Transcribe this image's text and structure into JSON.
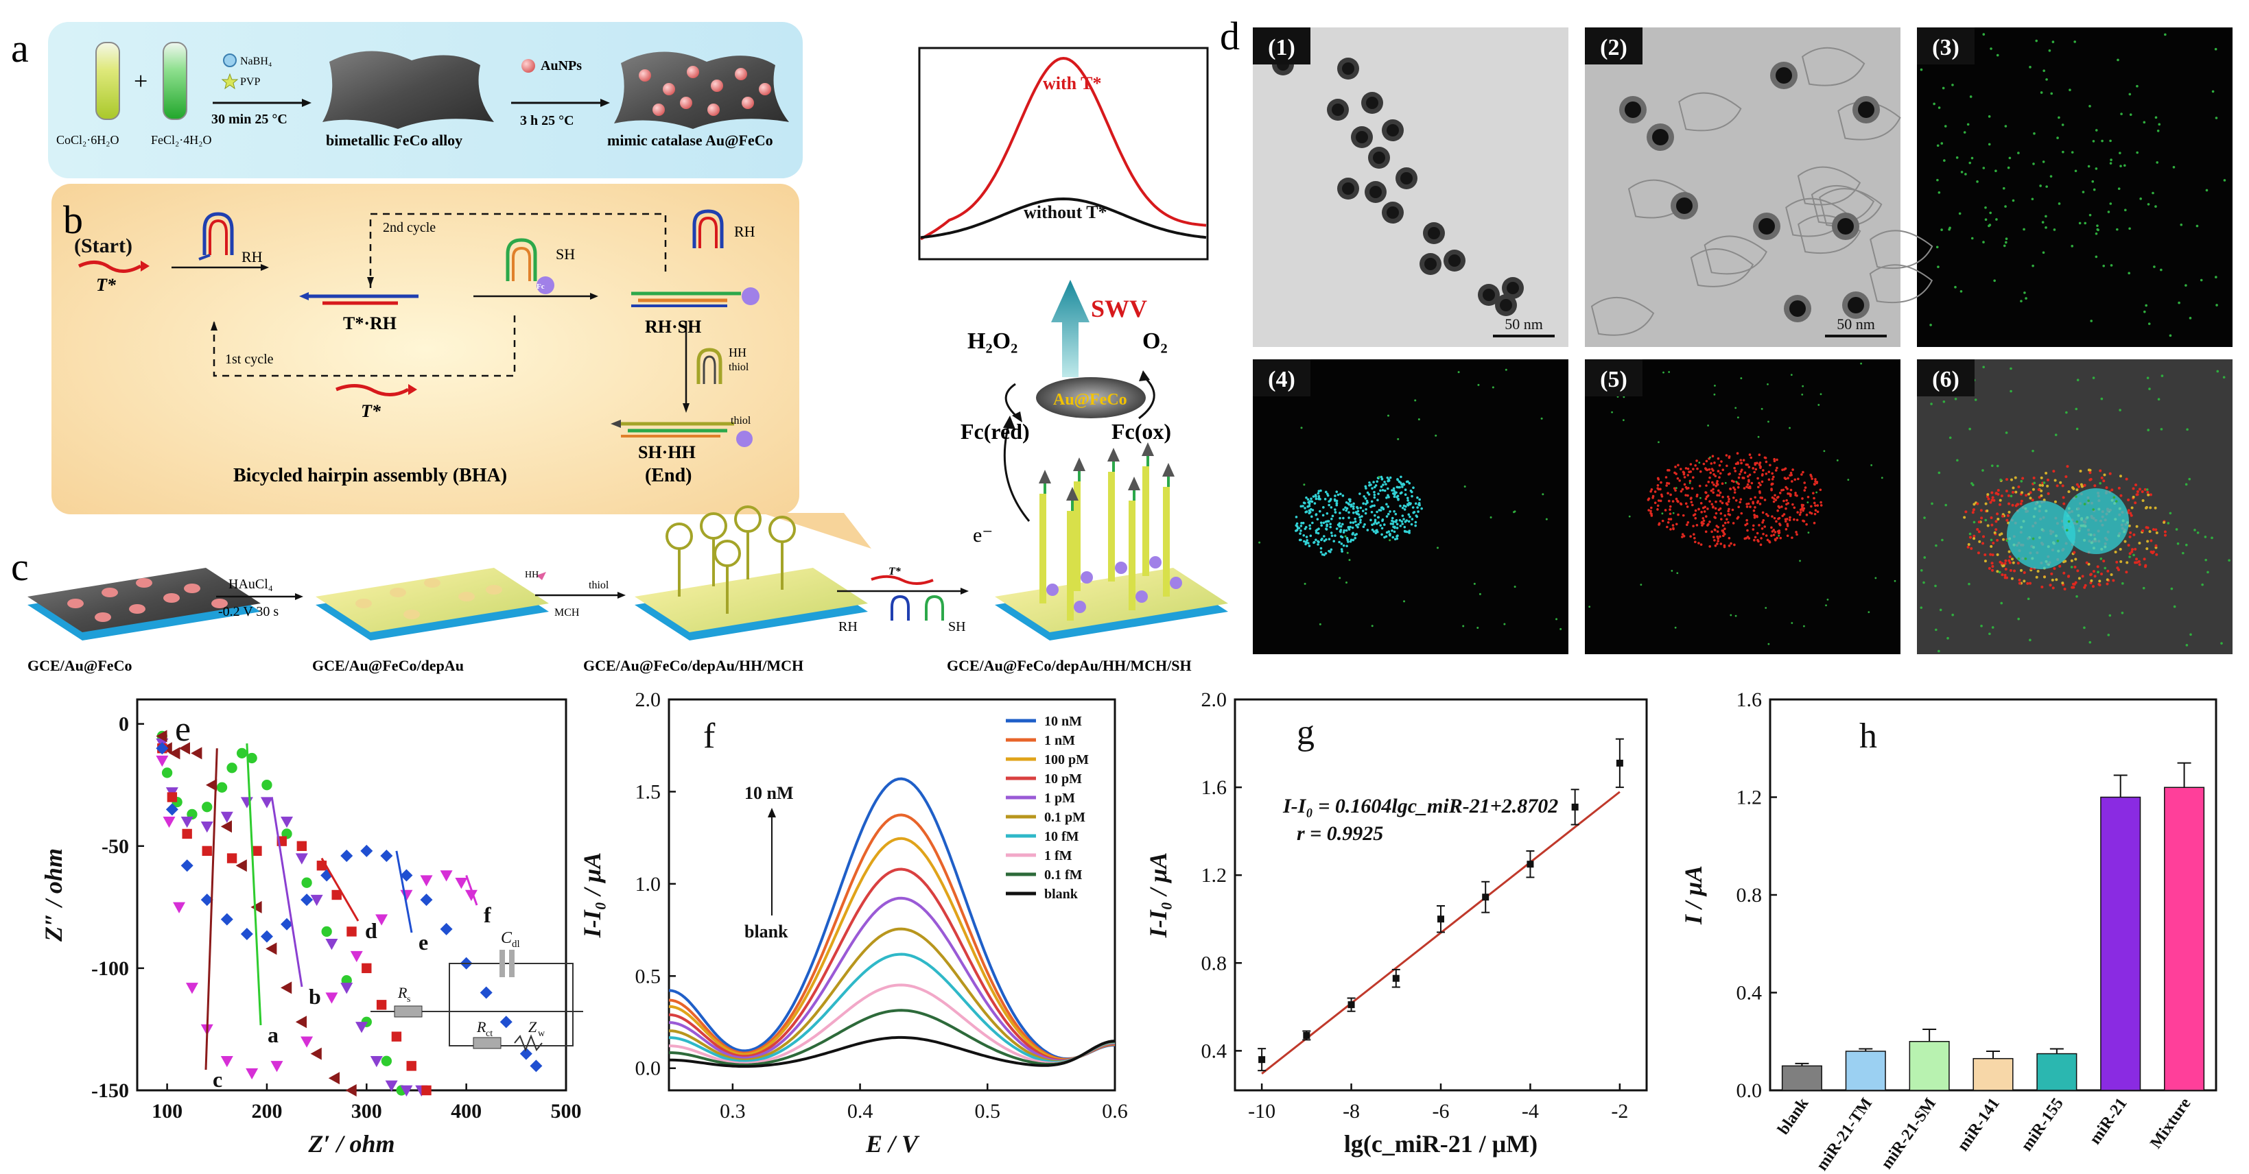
{
  "colors": {
    "red": "#d7191c",
    "tem_bg": "#cfcfcf",
    "eds_bg": "#050505",
    "cyan": "#32d2d6",
    "green_dot": "#2fae3e",
    "red_dot": "#e0281f"
  },
  "panel_letters": [
    "a",
    "b",
    "c",
    "d",
    "e",
    "f",
    "g",
    "h"
  ],
  "a": {
    "reagent1": "CoCl₂·6H₂O",
    "reagent2": "FeCl₂·4H₂O",
    "plus": "+",
    "nabh4": "NaBH₄",
    "pvp": "PVP",
    "cond1": "30 min 25 °C",
    "alloy": "bimetallic  FeCo alloy",
    "aunps": "AuNPs",
    "cond2": "3 h  25 °C",
    "catalase": "mimic catalase Au@FeCo"
  },
  "b": {
    "start": "(Start)",
    "tstar": "T*",
    "rh": "RH",
    "sh": "SH",
    "fc": "Fc",
    "t_rh": "T*·RH",
    "rh_sh": "RH·SH",
    "cycle2": "2nd cycle",
    "cycle1": "1st cycle",
    "hh": "HH",
    "thiol": "thiol",
    "sh_hh": "SH·HH",
    "end": "(End)",
    "title": "Bicycled hairpin assembly (BHA)"
  },
  "c": {
    "haucl4": "HAuCl₄",
    "cond": "-0.2 V 30 s",
    "hh": "HH",
    "thiol": "thiol",
    "mch": "MCH",
    "tstar": "T*",
    "rh": "RH",
    "sh": "SH",
    "e_label": "e⁻",
    "label1": "GCE/Au@FeCo",
    "label2": "GCE/Au@FeCo/depAu",
    "label3": "GCE/Au@FeCo/depAu/HH/MCH",
    "label4": "GCE/Au@FeCo/depAu/HH/MCH/SH",
    "fc": "Fc"
  },
  "swv": {
    "with": "with T*",
    "without": "without T*",
    "swv_label": "SWV",
    "h2o2": "H₂O₂",
    "o2": "O₂",
    "catalyst": "Au@FeCo",
    "fc_red": "Fc(red)",
    "fc_ox": "Fc(ox)"
  },
  "d": {
    "tiles": [
      "(1)",
      "(2)",
      "(3)",
      "(4)",
      "(5)",
      "(6)"
    ],
    "scale": "50 nm"
  },
  "chart_data": [
    {
      "panel": "e",
      "type": "scatter",
      "xlabel": "Z′ / ohm",
      "ylabel": "Z″ / ohm",
      "xlim": [
        70,
        500
      ],
      "ylim": [
        10,
        -150
      ],
      "xticks": [
        100,
        200,
        300,
        400,
        500
      ],
      "yticks": [
        0,
        -50,
        -100,
        -150
      ],
      "series": [
        {
          "name": "a",
          "color": "#2ecc2e",
          "marker": "circle",
          "x": [
            95,
            100,
            110,
            125,
            140,
            155,
            165,
            175,
            185,
            200,
            220,
            240,
            260,
            280,
            300,
            320,
            335
          ],
          "y": [
            -5,
            -20,
            -32,
            -37,
            -34,
            -26,
            -18,
            -12,
            -14,
            -25,
            -45,
            -65,
            -85,
            -105,
            -122,
            -138,
            -150
          ]
        },
        {
          "name": "b",
          "color": "#8a3fd1",
          "marker": "triangle-down",
          "x": [
            95,
            105,
            120,
            140,
            160,
            180,
            200,
            220,
            235,
            250,
            265,
            280,
            295,
            310,
            325,
            340,
            355
          ],
          "y": [
            -8,
            -28,
            -40,
            -42,
            -38,
            -32,
            -32,
            -40,
            -55,
            -72,
            -90,
            -108,
            -124,
            -138,
            -148,
            -150,
            -150
          ]
        },
        {
          "name": "c",
          "color": "#8b1a1a",
          "marker": "triangle-left",
          "x": [
            95,
            100,
            108,
            118,
            130,
            145,
            160,
            175,
            190,
            205,
            220,
            235,
            250,
            268,
            285
          ],
          "y": [
            -5,
            -10,
            -12,
            -10,
            -12,
            -25,
            -42,
            -58,
            -75,
            -92,
            -108,
            -122,
            -135,
            -145,
            -150
          ]
        },
        {
          "name": "d",
          "color": "#d32020",
          "marker": "square",
          "x": [
            95,
            105,
            120,
            140,
            165,
            190,
            215,
            235,
            255,
            270,
            285,
            300,
            315,
            330,
            345,
            360
          ],
          "y": [
            -10,
            -30,
            -45,
            -52,
            -55,
            -52,
            -48,
            -50,
            -58,
            -70,
            -85,
            -100,
            -115,
            -128,
            -140,
            -150
          ]
        },
        {
          "name": "e",
          "color": "#1f4fd1",
          "marker": "diamond",
          "x": [
            95,
            105,
            120,
            140,
            160,
            180,
            200,
            220,
            240,
            260,
            280,
            300,
            320,
            340,
            360,
            380,
            400,
            420,
            440,
            460,
            470
          ],
          "y": [
            -10,
            -35,
            -58,
            -72,
            -80,
            -86,
            -87,
            -82,
            -72,
            -62,
            -54,
            -52,
            -54,
            -62,
            -72,
            -84,
            -98,
            -110,
            -122,
            -135,
            -140
          ]
        },
        {
          "name": "f",
          "color": "#d62fd6",
          "marker": "triangle-down",
          "x": [
            95,
            102,
            112,
            125,
            140,
            160,
            185,
            210,
            240,
            265,
            290,
            315,
            340,
            360,
            380,
            395,
            405
          ],
          "y": [
            -15,
            -40,
            -75,
            -108,
            -125,
            -138,
            -143,
            -140,
            -130,
            -112,
            -95,
            -80,
            -70,
            -64,
            -62,
            -65,
            -70
          ]
        }
      ],
      "circuit": {
        "rs": "R",
        "rs_sub": "s",
        "cdl": "C",
        "cdl_sub": "dl",
        "rct": "R",
        "rct_sub": "ct",
        "zw": "Z",
        "zw_sub": "w"
      }
    },
    {
      "panel": "f",
      "type": "line",
      "xlabel": "E / V",
      "ylabel": "I-I₀ / μA",
      "xlim": [
        0.25,
        0.6
      ],
      "ylim": [
        -0.12,
        2.0
      ],
      "xticks": [
        0.3,
        0.4,
        0.5,
        0.6
      ],
      "yticks": [
        0.0,
        0.5,
        1.0,
        1.5,
        2.0
      ],
      "annot_top": "10 nM",
      "annot_bottom": "blank",
      "series": [
        {
          "name": "10 nM",
          "color": "#1f5fc8",
          "peak": 1.6
        },
        {
          "name": "1 nM",
          "color": "#e8642a",
          "peak": 1.4
        },
        {
          "name": "100 pM",
          "color": "#e0a31a",
          "peak": 1.27
        },
        {
          "name": "10 pM",
          "color": "#d94040",
          "peak": 1.1
        },
        {
          "name": "1 pM",
          "color": "#9a5ad6",
          "peak": 0.94
        },
        {
          "name": "0.1 pM",
          "color": "#b8961d",
          "peak": 0.77
        },
        {
          "name": "10 fM",
          "color": "#2fb8c8",
          "peak": 0.63
        },
        {
          "name": "1 fM",
          "color": "#f2a8c8",
          "peak": 0.46
        },
        {
          "name": "0.1 fM",
          "color": "#2d6a3a",
          "peak": 0.32
        },
        {
          "name": "blank",
          "color": "#111111",
          "peak": 0.17
        }
      ]
    },
    {
      "panel": "g",
      "type": "scatter",
      "xlabel": "lg(c_miR-21 / μM)",
      "ylabel": "I-I₀ / μA",
      "xlim": [
        -10.6,
        -1.4
      ],
      "ylim": [
        0.22,
        2.0
      ],
      "xticks": [
        -10,
        -8,
        -6,
        -4,
        -2
      ],
      "yticks": [
        0.4,
        0.8,
        1.2,
        1.6,
        2.0
      ],
      "equation": "I-I₀ = 0.1604lgc_miR-21+2.8702",
      "r_value": "r = 0.9925",
      "x": [
        -10,
        -9,
        -8,
        -7,
        -6,
        -5,
        -4,
        -3,
        -2
      ],
      "y": [
        0.36,
        0.47,
        0.61,
        0.73,
        1.0,
        1.1,
        1.25,
        1.51,
        1.71
      ],
      "err": [
        0.05,
        0.02,
        0.03,
        0.04,
        0.06,
        0.07,
        0.06,
        0.08,
        0.11
      ],
      "fit": {
        "slope": 0.1604,
        "intercept": 1.9
      }
    },
    {
      "panel": "h",
      "type": "bar",
      "ylabel": "I / μA",
      "ylim": [
        0,
        1.6
      ],
      "yticks": [
        0.0,
        0.4,
        0.8,
        1.2,
        1.6
      ],
      "categories": [
        "blank",
        "miR-21-TM",
        "miR-21-SM",
        "miR-141",
        "miR-155",
        "miR-21",
        "Mixture"
      ],
      "values": [
        0.1,
        0.16,
        0.2,
        0.13,
        0.15,
        1.2,
        1.24
      ],
      "errors": [
        0.01,
        0.01,
        0.05,
        0.03,
        0.02,
        0.09,
        0.1
      ],
      "colors": [
        "#7f7f7f",
        "#9bd0f2",
        "#b8f2b0",
        "#f7d7a8",
        "#2bb7b0",
        "#8a2be2",
        "#ff3f9a"
      ]
    }
  ]
}
